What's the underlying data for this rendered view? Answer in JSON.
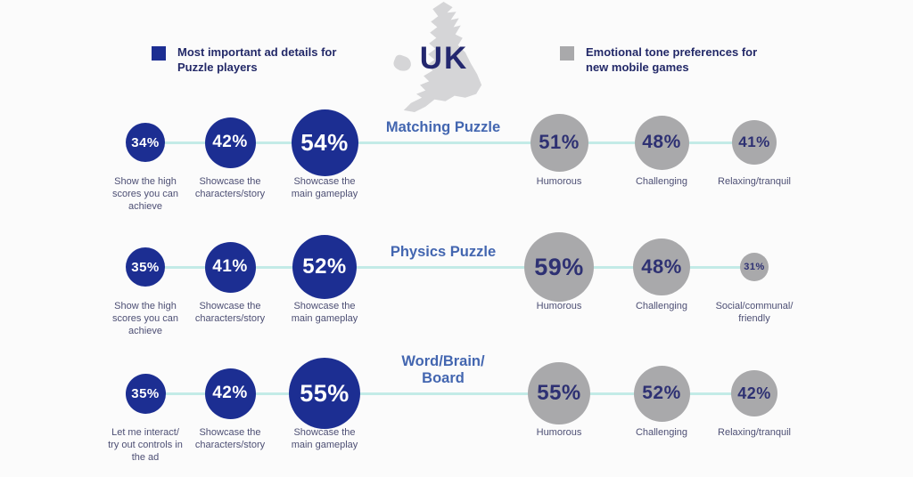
{
  "header": {
    "country": "UK",
    "legend_left": {
      "label": "Most important ad details for\nPuzzle players",
      "color": "#1c2e92"
    },
    "legend_right": {
      "label": "Emotional tone preferences for\nnew mobile games",
      "color": "#a9a9ab"
    }
  },
  "colors": {
    "ad_details_bubble": "#1c2e92",
    "tone_bubble": "#a9a9ab",
    "connector_line": "#c3ebe7",
    "row_title": "#4366b0",
    "bubble_label": "#4d4f74",
    "map": "#d5d5d7"
  },
  "chart_data": {
    "type": "bubble",
    "title": "UK",
    "legend": [
      "Most important ad details for Puzzle players",
      "Emotional tone preferences for new mobile games"
    ],
    "rows": [
      {
        "title": "Matching Puzzle",
        "ad_details": [
          {
            "value": "34%",
            "number": 34,
            "label": "Show the high\nscores you can\nachieve",
            "size": 44
          },
          {
            "value": "42%",
            "number": 42,
            "label": "Showcase the\ncharacters/story",
            "size": 57
          },
          {
            "value": "54%",
            "number": 54,
            "label": "Showcase the\nmain gameplay",
            "size": 75
          }
        ],
        "tones": [
          {
            "value": "51%",
            "number": 51,
            "label": "Humorous",
            "size": 65
          },
          {
            "value": "48%",
            "number": 48,
            "label": "Challenging",
            "size": 61
          },
          {
            "value": "41%",
            "number": 41,
            "label": "Relaxing/tranquil",
            "size": 50
          }
        ]
      },
      {
        "title": "Physics Puzzle",
        "ad_details": [
          {
            "value": "35%",
            "number": 35,
            "label": "Show the high\nscores you can\nachieve",
            "size": 44
          },
          {
            "value": "41%",
            "number": 41,
            "label": "Showcase the\ncharacters/story",
            "size": 57
          },
          {
            "value": "52%",
            "number": 52,
            "label": "Showcase the\nmain gameplay",
            "size": 72
          }
        ],
        "tones": [
          {
            "value": "59%",
            "number": 59,
            "label": "Humorous",
            "size": 78
          },
          {
            "value": "48%",
            "number": 48,
            "label": "Challenging",
            "size": 64
          },
          {
            "value": "31%",
            "number": 31,
            "label": "Social/communal/\nfriendly",
            "size": 32
          }
        ]
      },
      {
        "title": "Word/Brain/\nBoard",
        "ad_details": [
          {
            "value": "35%",
            "number": 35,
            "label": "Let me interact/\ntry out controls in\nthe ad",
            "size": 45
          },
          {
            "value": "42%",
            "number": 42,
            "label": "Showcase the\ncharacters/story",
            "size": 57
          },
          {
            "value": "55%",
            "number": 55,
            "label": "Showcase the\nmain gameplay",
            "size": 80
          }
        ],
        "tones": [
          {
            "value": "55%",
            "number": 55,
            "label": "Humorous",
            "size": 70
          },
          {
            "value": "52%",
            "number": 52,
            "label": "Challenging",
            "size": 63
          },
          {
            "value": "42%",
            "number": 42,
            "label": "Relaxing/tranquil",
            "size": 52
          }
        ]
      }
    ]
  }
}
